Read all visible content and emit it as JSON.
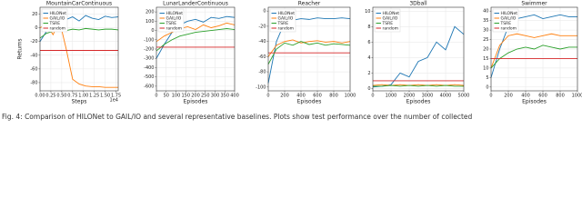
{
  "chart_data": [
    {
      "type": "line",
      "title": "MountainCarContinuous",
      "x_label": "Steps",
      "y_label": "Returns",
      "x_offset_label": "1e4",
      "x": [
        0,
        0.15,
        0.3,
        0.45,
        0.6,
        0.75,
        0.9,
        1.05,
        1.2,
        1.35,
        1.5,
        1.65,
        1.8
      ],
      "series": [
        {
          "name": "HILONet",
          "color": "#1f77b4",
          "values": [
            -20,
            -5,
            8,
            14,
            12,
            16,
            10,
            18,
            14,
            12,
            17,
            15,
            16
          ]
        },
        {
          "name": "GAIL/IO",
          "color": "#ff7f0e",
          "values": [
            0,
            5,
            -10,
            10,
            -30,
            -75,
            -82,
            -85,
            -86,
            -86,
            -87,
            -87,
            -87
          ]
        },
        {
          "name": "TSRE",
          "color": "#2ca02c",
          "values": [
            -15,
            -8,
            -5,
            -3,
            -4,
            -2,
            -3,
            -1,
            -2,
            -3,
            -2,
            -2,
            -3
          ]
        },
        {
          "name": "random",
          "color": "#d62728",
          "values": [
            -33,
            -33,
            -33,
            -33,
            -33,
            -33,
            -33,
            -33,
            -33,
            -33,
            -33,
            -33,
            -33
          ]
        }
      ],
      "xlim": [
        0,
        1.8
      ],
      "ylim": [
        -92,
        30
      ],
      "xticks": [
        {
          "value": 0,
          "label": "0.00"
        },
        {
          "value": 0.25,
          "label": "0.25"
        },
        {
          "value": 0.5,
          "label": "0.50"
        },
        {
          "value": 0.75,
          "label": "0.75"
        },
        {
          "value": 1,
          "label": "1.00"
        },
        {
          "value": 1.25,
          "label": "1.25"
        },
        {
          "value": 1.5,
          "label": "1.50"
        },
        {
          "value": 1.75,
          "label": "1.75"
        }
      ],
      "yticks": [
        -80,
        -60,
        -40,
        -20,
        0,
        20
      ],
      "grid": true,
      "legend": "upper left"
    },
    {
      "type": "line",
      "title": "LunarLanderContinuous",
      "x_label": "Episodes",
      "x": [
        0,
        40,
        80,
        120,
        160,
        200,
        240,
        280,
        320,
        360,
        400
      ],
      "series": [
        {
          "name": "HILONet",
          "color": "#1f77b4",
          "values": [
            -300,
            -150,
            -20,
            60,
            100,
            120,
            90,
            140,
            130,
            150,
            140
          ]
        },
        {
          "name": "GAIL/IO",
          "color": "#ff7f0e",
          "values": [
            -120,
            -60,
            -20,
            20,
            40,
            10,
            60,
            30,
            50,
            80,
            60
          ]
        },
        {
          "name": "TSRE",
          "color": "#2ca02c",
          "values": [
            -220,
            -150,
            -100,
            -60,
            -40,
            -20,
            -10,
            0,
            10,
            20,
            10
          ]
        },
        {
          "name": "random",
          "color": "#d62728",
          "values": [
            -180,
            -180,
            -180,
            -180,
            -180,
            -180,
            -180,
            -180,
            -180,
            -180,
            -180
          ]
        }
      ],
      "xlim": [
        0,
        400
      ],
      "ylim": [
        -650,
        250
      ],
      "xticks": [
        0,
        50,
        100,
        150,
        200,
        250,
        300,
        350,
        400
      ],
      "yticks": [
        -600,
        -500,
        -400,
        -300,
        -200,
        -100,
        0,
        100,
        200
      ],
      "grid": true,
      "legend": "upper left"
    },
    {
      "type": "line",
      "title": "Reacher",
      "x_label": "Episodes",
      "x": [
        0,
        100,
        200,
        300,
        400,
        500,
        600,
        700,
        800,
        900,
        1000
      ],
      "series": [
        {
          "name": "HILONet",
          "color": "#1f77b4",
          "values": [
            -95,
            -40,
            -15,
            -12,
            -10,
            -11,
            -9,
            -10,
            -10,
            -9,
            -10
          ]
        },
        {
          "name": "GAIL/IO",
          "color": "#ff7f0e",
          "values": [
            -60,
            -45,
            -40,
            -38,
            -42,
            -40,
            -39,
            -41,
            -40,
            -42,
            -40
          ]
        },
        {
          "name": "TSRE",
          "color": "#2ca02c",
          "values": [
            -70,
            -50,
            -42,
            -45,
            -40,
            -44,
            -42,
            -45,
            -43,
            -44,
            -45
          ]
        },
        {
          "name": "random",
          "color": "#d62728",
          "values": [
            -55,
            -55,
            -55,
            -55,
            -55,
            -55,
            -55,
            -55,
            -55,
            -55,
            -55
          ]
        }
      ],
      "xlim": [
        0,
        1000
      ],
      "ylim": [
        -105,
        5
      ],
      "xticks": [
        0,
        200,
        400,
        600,
        800,
        1000
      ],
      "yticks": [
        -100,
        -80,
        -60,
        -40,
        -20,
        0
      ],
      "grid": true,
      "legend": "upper left"
    },
    {
      "type": "line",
      "title": "3Dball",
      "x_label": "Episodes",
      "x": [
        0,
        500,
        1000,
        1500,
        2000,
        2500,
        3000,
        3500,
        4000,
        4500,
        5000
      ],
      "series": [
        {
          "name": "HILONet",
          "color": "#1f77b4",
          "values": [
            0.2,
            0.3,
            0.5,
            2,
            1.5,
            3.5,
            4,
            6,
            5,
            8,
            7
          ]
        },
        {
          "name": "GAIL/IO",
          "color": "#ff7f0e",
          "values": [
            0.4,
            0.5,
            0.4,
            0.5,
            0.4,
            0.5,
            0.4,
            0.5,
            0.4,
            0.5,
            0.4
          ]
        },
        {
          "name": "TSRE",
          "color": "#2ca02c",
          "values": [
            0.3,
            0.3,
            0.4,
            0.3,
            0.4,
            0.3,
            0.4,
            0.3,
            0.4,
            0.3,
            0.3
          ]
        },
        {
          "name": "random",
          "color": "#d62728",
          "values": [
            1,
            1,
            1,
            1,
            1,
            1,
            1,
            1,
            1,
            1,
            1
          ]
        }
      ],
      "xlim": [
        0,
        5000
      ],
      "ylim": [
        -0.3,
        10.5
      ],
      "xticks": [
        0,
        1000,
        2000,
        3000,
        4000,
        5000
      ],
      "yticks": [
        0,
        2,
        4,
        6,
        8,
        10
      ],
      "grid": true,
      "legend": "upper left"
    },
    {
      "type": "line",
      "title": "Swimmer",
      "x_label": "Episodes",
      "x": [
        0,
        100,
        200,
        300,
        400,
        500,
        600,
        700,
        800,
        900,
        1000
      ],
      "series": [
        {
          "name": "HILONet",
          "color": "#1f77b4",
          "values": [
            5,
            20,
            32,
            36,
            37,
            38,
            36,
            37,
            38,
            37,
            37
          ]
        },
        {
          "name": "GAIL/IO",
          "color": "#ff7f0e",
          "values": [
            10,
            22,
            27,
            28,
            27,
            26,
            27,
            28,
            27,
            27,
            27
          ]
        },
        {
          "name": "TSRE",
          "color": "#2ca02c",
          "values": [
            10,
            15,
            18,
            20,
            21,
            20,
            22,
            21,
            20,
            21,
            21
          ]
        },
        {
          "name": "random",
          "color": "#d62728",
          "values": [
            15,
            15,
            15,
            15,
            15,
            15,
            15,
            15,
            15,
            15,
            15
          ]
        }
      ],
      "xlim": [
        0,
        1000
      ],
      "ylim": [
        -2,
        42
      ],
      "xticks": [
        0,
        200,
        400,
        600,
        800,
        1000
      ],
      "yticks": [
        0,
        5,
        10,
        15,
        20,
        25,
        30,
        35,
        40
      ],
      "grid": true,
      "legend": "upper left"
    }
  ],
  "caption": "Fig. 4: Comparison of HILONet to GAIL/IO and several representative baselines. Plots show test performance over the number of collected"
}
